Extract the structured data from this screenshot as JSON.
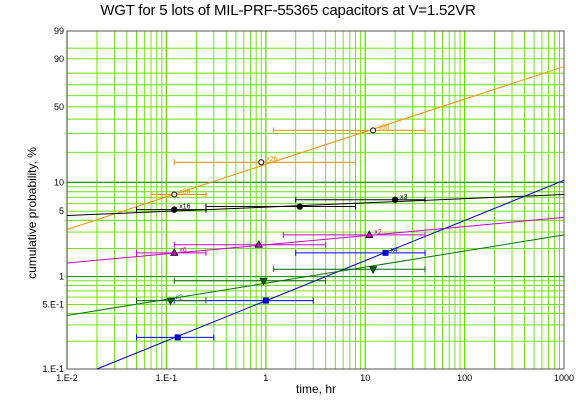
{
  "chart_data": {
    "type": "scatter",
    "title": "WGT for 5 lots of MIL-PRF-55365 capacitors at V=1.52VR",
    "xlabel": "time, hr",
    "ylabel": "cumulative probability, %",
    "x_scale": "log",
    "y_scale": "weibull probability",
    "xlim": [
      0.01,
      1000
    ],
    "ylim": [
      0.1,
      99
    ],
    "x_ticks": [
      {
        "value": 0.01,
        "label": "1.E-2"
      },
      {
        "value": 0.1,
        "label": "1.E-1"
      },
      {
        "value": 1,
        "label": "1"
      },
      {
        "value": 10,
        "label": "10"
      },
      {
        "value": 100,
        "label": "100"
      },
      {
        "value": 1000,
        "label": "1000"
      }
    ],
    "y_ticks": [
      {
        "value": 0.1,
        "label": "1.E-1"
      },
      {
        "value": 0.5,
        "label": "5.E-1"
      },
      {
        "value": 1,
        "label": "1"
      },
      {
        "value": 5,
        "label": "5"
      },
      {
        "value": 10,
        "label": "10"
      },
      {
        "value": 50,
        "label": "50"
      },
      {
        "value": 90,
        "label": "90"
      },
      {
        "value": 99,
        "label": "99"
      }
    ],
    "grid": true,
    "colors": {
      "grid": "#66dd00",
      "orange": "#ff8c00",
      "black": "#000000",
      "magenta": "#cc00cc",
      "blue": "#0000cc",
      "green": "#007700",
      "errorbar_orange": "#ff8c00",
      "errorbar_black": "#000000",
      "errorbar_magenta": "#cc00cc",
      "errorbar_blue": "#0000ff",
      "errorbar_green": "#006600"
    },
    "series": [
      {
        "color": "orange",
        "marker": "circle-open",
        "points": [
          {
            "x": 0.12,
            "y": 7.5,
            "xerr": [
              0.07,
              0.25
            ],
            "label": "x28"
          },
          {
            "x": 0.9,
            "y": 16,
            "xerr": [
              0.12,
              8
            ],
            "label": "x26"
          },
          {
            "x": 12,
            "y": 32,
            "xerr": [
              1.2,
              40
            ],
            "label": "x50"
          }
        ],
        "fit": [
          [
            0.01,
            3.2
          ],
          [
            1000,
            85
          ]
        ]
      },
      {
        "color": "black",
        "marker": "circle-filled",
        "points": [
          {
            "x": 0.12,
            "y": 5.2,
            "xerr": [
              0.05,
              0.25
            ],
            "label": "x16"
          },
          {
            "x": 2.2,
            "y": 5.6,
            "xerr": [
              0.25,
              8
            ],
            "label": ""
          },
          {
            "x": 20,
            "y": 6.6,
            "xerr": [
              2,
              40
            ],
            "label": "x3"
          }
        ],
        "fit": [
          [
            0.01,
            4.5
          ],
          [
            1000,
            7.5
          ]
        ]
      },
      {
        "color": "magenta",
        "marker": "triangle-up",
        "points": [
          {
            "x": 0.12,
            "y": 1.8,
            "xerr": [
              0.05,
              0.25
            ],
            "label": "x6"
          },
          {
            "x": 0.85,
            "y": 2.2,
            "xerr": [
              0.12,
              4
            ],
            "label": ""
          },
          {
            "x": 11,
            "y": 2.8,
            "xerr": [
              1.5,
              40
            ],
            "label": "x2"
          }
        ],
        "fit": [
          [
            0.01,
            1.4
          ],
          [
            1000,
            4.3
          ]
        ]
      },
      {
        "color": "blue",
        "marker": "square",
        "points": [
          {
            "x": 0.13,
            "y": 0.22,
            "xerr": [
              0.05,
              0.3
            ],
            "label": ""
          },
          {
            "x": 1,
            "y": 0.55,
            "xerr": [
              0.12,
              3
            ],
            "label": ""
          },
          {
            "x": 16,
            "y": 1.8,
            "xerr": [
              2,
              40
            ],
            "label": "x4"
          }
        ],
        "fit": [
          [
            0.02,
            0.1
          ],
          [
            1000,
            10.5
          ]
        ]
      },
      {
        "color": "green",
        "marker": "triangle-down",
        "points": [
          {
            "x": 0.11,
            "y": 0.55,
            "xerr": [
              0.05,
              0.25
            ],
            "label": "x2"
          },
          {
            "x": 0.95,
            "y": 0.9,
            "xerr": [
              0.12,
              4
            ],
            "label": ""
          },
          {
            "x": 12,
            "y": 1.2,
            "xerr": [
              1.2,
              40
            ],
            "label": ""
          }
        ],
        "fit": [
          [
            0.01,
            0.38
          ],
          [
            1000,
            2.8
          ]
        ]
      }
    ]
  }
}
